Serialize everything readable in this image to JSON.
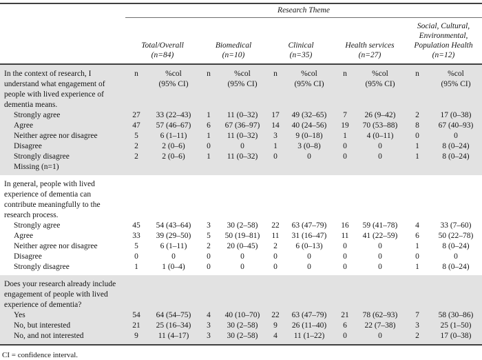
{
  "table": {
    "spanner_label": "Research Theme",
    "groups": [
      {
        "label": "Total/Overall",
        "n_label": "(n=84)"
      },
      {
        "label": "Biomedical",
        "n_label": "(n=10)"
      },
      {
        "label": "Clinical",
        "n_label": "(n=35)"
      },
      {
        "label": "Health services",
        "n_label": "(n=27)"
      },
      {
        "label": "Social, Cultural,\nEnvironmental,\nPopulation Health",
        "n_label": "(n=12)"
      }
    ],
    "subheaders": {
      "n": "n",
      "pct": "%col",
      "ci": "(95% CI)"
    },
    "sections": [
      {
        "question": "In the context of research, I\nunderstand what engagement of\npeople with lived experience of\ndementia means.",
        "shaded": true,
        "show_subheaders": true,
        "rows": [
          {
            "label": "Strongly agree",
            "values": [
              "27",
              "33 (22–43)",
              "1",
              "11 (0–32)",
              "17",
              "49 (32–65)",
              "7",
              "26 (9–42)",
              "2",
              "17 (0–38)"
            ]
          },
          {
            "label": "Agree",
            "values": [
              "47",
              "57 (46–67)",
              "6",
              "67 (36–97)",
              "14",
              "40 (24–56)",
              "19",
              "70 (53–88)",
              "8",
              "67 (40–93)"
            ]
          },
          {
            "label": "Neither agree nor disagree",
            "values": [
              "5",
              "6 (1–11)",
              "1",
              "11 (0–32)",
              "3",
              "9 (0–18)",
              "1",
              "4 (0–11)",
              "0",
              "0"
            ]
          },
          {
            "label": "Disagree",
            "values": [
              "2",
              "2 (0–6)",
              "0",
              "0",
              "1",
              "3 (0–8)",
              "0",
              "0",
              "1",
              "8 (0–24)"
            ]
          },
          {
            "label": "Strongly disagree",
            "values": [
              "2",
              "2 (0–6)",
              "1",
              "11 (0–32)",
              "0",
              "0",
              "0",
              "0",
              "1",
              "8 (0–24)"
            ]
          },
          {
            "label": "Missing (n=1)",
            "values": [
              "",
              "",
              "",
              "",
              "",
              "",
              "",
              "",
              "",
              ""
            ]
          }
        ]
      },
      {
        "question": "In general, people with lived\nexperience of dementia can\ncontribute meaningfully to the\nresearch process.",
        "shaded": false,
        "show_subheaders": false,
        "rows": [
          {
            "label": "Strongly agree",
            "values": [
              "45",
              "54 (43–64)",
              "3",
              "30 (2–58)",
              "22",
              "63 (47–79)",
              "16",
              "59 (41–78)",
              "4",
              "33 (7–60)"
            ]
          },
          {
            "label": "Agree",
            "values": [
              "33",
              "39 (29–50)",
              "5",
              "50 (19–81)",
              "11",
              "31 (16–47)",
              "11",
              "41 (22–59)",
              "6",
              "50 (22–78)"
            ]
          },
          {
            "label": "Neither agree nor disagree",
            "values": [
              "5",
              "6 (1–11)",
              "2",
              "20 (0–45)",
              "2",
              "6 (0–13)",
              "0",
              "0",
              "1",
              "8 (0–24)"
            ]
          },
          {
            "label": "Disagree",
            "values": [
              "0",
              "0",
              "0",
              "0",
              "0",
              "0",
              "0",
              "0",
              "0",
              "0"
            ]
          },
          {
            "label": "Strongly disagree",
            "values": [
              "1",
              "1 (0–4)",
              "0",
              "0",
              "0",
              "0",
              "0",
              "0",
              "1",
              "8 (0–24)"
            ]
          }
        ]
      },
      {
        "question": "Does your research already include\nengagement of people with lived\nexperience of dementia?",
        "shaded": true,
        "show_subheaders": false,
        "rows": [
          {
            "label": "Yes",
            "values": [
              "54",
              "64 (54–75)",
              "4",
              "40 (10–70)",
              "22",
              "63 (47–79)",
              "21",
              "78 (62–93)",
              "7",
              "58 (30–86)"
            ]
          },
          {
            "label": "No, but interested",
            "values": [
              "21",
              "25 (16–34)",
              "3",
              "30 (2–58)",
              "9",
              "26 (11–40)",
              "6",
              "22 (7–38)",
              "3",
              "25 (1–50)"
            ]
          },
          {
            "label": "No, and not interested",
            "values": [
              "9",
              "11 (4–17)",
              "3",
              "30 (2–58)",
              "4",
              "11 (1–22)",
              "0",
              "0",
              "2",
              "17 (0–38)"
            ]
          }
        ]
      }
    ],
    "footnote": "CI = confidence interval."
  }
}
